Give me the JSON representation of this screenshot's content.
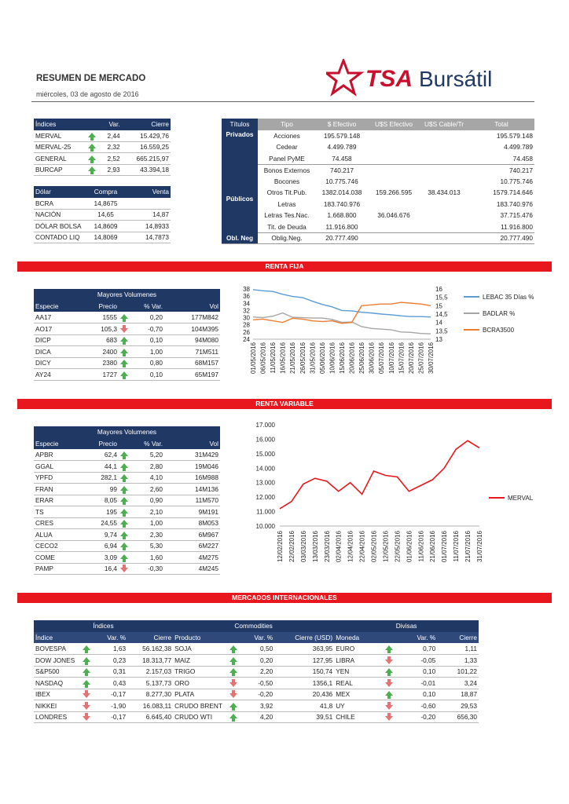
{
  "header": {
    "title": "RESUMEN DE MERCADO",
    "date": "miércoles, 03 de agosto de 2016",
    "logo_text": "TSA Bursátil",
    "logo_tsa": "TSA",
    "logo_bursatil": "Bursátil"
  },
  "indices": {
    "headers": [
      "Índices",
      "Var.",
      "Cierre"
    ],
    "rows": [
      {
        "name": "MERVAL",
        "dir": "up",
        "var": "2,44",
        "close": "15.429,76"
      },
      {
        "name": "MERVAL-25",
        "dir": "up",
        "var": "2,32",
        "close": "16.559,25"
      },
      {
        "name": "GENERAL",
        "dir": "up",
        "var": "2,52",
        "close": "665.215,97"
      },
      {
        "name": "BURCAP",
        "dir": "up",
        "var": "2,93",
        "close": "43.394,18"
      }
    ]
  },
  "dolar": {
    "headers": [
      "Dólar",
      "Compra",
      "Venta"
    ],
    "rows": [
      {
        "name": "BCRA",
        "buy": "14,8675",
        "sell": ""
      },
      {
        "name": "NACIÓN",
        "buy": "14,65",
        "sell": "14,87"
      },
      {
        "name": "DÓLAR BOLSA",
        "buy": "14,8609",
        "sell": "14,8933"
      },
      {
        "name": "CONTADO LIQ",
        "buy": "14,8069",
        "sell": "14,7873"
      }
    ]
  },
  "titulos": {
    "headers": [
      "Títulos",
      "Tipo",
      "$ Efectivo",
      "U$S Efectivo",
      "U$S Cable/Tr",
      "Total"
    ],
    "privados_label": "Privados",
    "publicos_label": "Públicos",
    "obl_label": "Obl. Neg",
    "privados": [
      {
        "tipo": "Acciones",
        "ef": "195.579.148",
        "usd": "",
        "cable": "",
        "total": "195.579.148"
      },
      {
        "tipo": "Cedear",
        "ef": "4.499.789",
        "usd": "",
        "cable": "",
        "total": "4.499.789"
      },
      {
        "tipo": "Panel PyME",
        "ef": "74.458",
        "usd": "",
        "cable": "",
        "total": "74.458"
      }
    ],
    "publicos": [
      {
        "tipo": "Bonos Externos",
        "ef": "740.217",
        "usd": "",
        "cable": "",
        "total": "740.217"
      },
      {
        "tipo": "Bocones",
        "ef": "10.775.746",
        "usd": "",
        "cable": "",
        "total": "10.775.746"
      },
      {
        "tipo": "Otros Tit.Pub.",
        "ef": "1382.014.038",
        "usd": "159.266.595",
        "cable": "38.434.013",
        "total": "1579.714.646"
      },
      {
        "tipo": "Letras",
        "ef": "183.740.976",
        "usd": "",
        "cable": "",
        "total": "183.740.976"
      },
      {
        "tipo": "Letras Tes.Nac.",
        "ef": "1.668.800",
        "usd": "36.046.676",
        "cable": "",
        "total": "37.715.476"
      },
      {
        "tipo": "Tit. de Deuda",
        "ef": "11.916.800",
        "usd": "",
        "cable": "",
        "total": "11.916.800"
      }
    ],
    "obl": [
      {
        "tipo": "Oblig.Neg.",
        "ef": "20.777.490",
        "usd": "",
        "cable": "",
        "total": "20.777.490"
      }
    ]
  },
  "sections": {
    "renta_fija": "RENTA FIJA",
    "renta_variable": "RENTA VARIABLE",
    "internacionales": "MERCADOS INTERNACIONALES"
  },
  "rf_vol": {
    "title": "Mayores Volumenes",
    "headers": [
      "Especie",
      "Precio",
      "% Var.",
      "Vol"
    ],
    "rows": [
      {
        "esp": "AA17",
        "precio": "1555",
        "dir": "up",
        "var": "0,20",
        "vol": "177M842"
      },
      {
        "esp": "AO17",
        "precio": "105,3",
        "dir": "dn",
        "var": "-0,70",
        "vol": "104M395"
      },
      {
        "esp": "DICP",
        "precio": "683",
        "dir": "up",
        "var": "0,10",
        "vol": "94M080"
      },
      {
        "esp": "DICA",
        "precio": "2400",
        "dir": "up",
        "var": "1,00",
        "vol": "71M511"
      },
      {
        "esp": "DICY",
        "precio": "2380",
        "dir": "up",
        "var": "0,80",
        "vol": "68M157"
      },
      {
        "esp": "AY24",
        "precio": "1727",
        "dir": "up",
        "var": "0,10",
        "vol": "65M197"
      }
    ]
  },
  "rv_vol": {
    "title": "Mayores Volumenes",
    "headers": [
      "Especie",
      "Precio",
      "% Var.",
      "Vol"
    ],
    "rows": [
      {
        "esp": "APBR",
        "precio": "62,4",
        "dir": "up",
        "var": "5,20",
        "vol": "31M429"
      },
      {
        "esp": "GGAL",
        "precio": "44,1",
        "dir": "up",
        "var": "2,80",
        "vol": "19M046"
      },
      {
        "esp": "YPFD",
        "precio": "282,1",
        "dir": "up",
        "var": "4,10",
        "vol": "16M988"
      },
      {
        "esp": "FRAN",
        "precio": "99",
        "dir": "up",
        "var": "2,60",
        "vol": "14M136"
      },
      {
        "esp": "ERAR",
        "precio": "8,05",
        "dir": "up",
        "var": "0,90",
        "vol": "11M570"
      },
      {
        "esp": "TS",
        "precio": "195",
        "dir": "up",
        "var": "2,10",
        "vol": "9M191"
      },
      {
        "esp": "CRES",
        "precio": "24,55",
        "dir": "up",
        "var": "1,00",
        "vol": "8M053"
      },
      {
        "esp": "ALUA",
        "precio": "9,74",
        "dir": "up",
        "var": "2,30",
        "vol": "6M967"
      },
      {
        "esp": "CECO2",
        "precio": "6,94",
        "dir": "up",
        "var": "5,30",
        "vol": "6M227"
      },
      {
        "esp": "COME",
        "precio": "3,09",
        "dir": "up",
        "var": "1,60",
        "vol": "4M275"
      },
      {
        "esp": "PAMP",
        "precio": "16,4",
        "dir": "dn",
        "var": "-0,30",
        "vol": "4M245"
      }
    ]
  },
  "intl": {
    "groups": [
      "Índices",
      "Commodities",
      "Divisas"
    ],
    "headers": [
      "Índice",
      "Var. %",
      "Cierre",
      "Producto",
      "Var. %",
      "Cierre (USD)",
      "Moneda",
      "Var. %",
      "Cierre"
    ],
    "rows": [
      {
        "i": "BOVESPA",
        "id": "up",
        "iv": "1,63",
        "ic": "56.162,38",
        "p": "SOJA",
        "pd": "up",
        "pv": "0,50",
        "pc": "363,95",
        "m": "EURO",
        "md": "up",
        "mv": "0,70",
        "mc": "1,11"
      },
      {
        "i": "DOW JONES",
        "id": "up",
        "iv": "0,23",
        "ic": "18.313,77",
        "p": "MAIZ",
        "pd": "up",
        "pv": "0,20",
        "pc": "127,95",
        "m": "LIBRA",
        "md": "dn",
        "mv": "-0,05",
        "mc": "1,33"
      },
      {
        "i": "S&P500",
        "id": "up",
        "iv": "0,31",
        "ic": "2.157,03",
        "p": "TRIGO",
        "pd": "up",
        "pv": "2,20",
        "pc": "150,74",
        "m": "YEN",
        "md": "up",
        "mv": "0,10",
        "mc": "101,22"
      },
      {
        "i": "NASDAQ",
        "id": "up",
        "iv": "0,43",
        "ic": "5.137,73",
        "p": "ORO",
        "pd": "dn",
        "pv": "-0,50",
        "pc": "1356,1",
        "m": "REAL",
        "md": "dn",
        "mv": "-0,01",
        "mc": "3,24"
      },
      {
        "i": "IBEX",
        "id": "dn",
        "iv": "-0,17",
        "ic": "8.277,30",
        "p": "PLATA",
        "pd": "dn",
        "pv": "-0,20",
        "pc": "20,436",
        "m": "MEX",
        "md": "up",
        "mv": "0,10",
        "mc": "18,87"
      },
      {
        "i": "NIKKEI",
        "id": "dn",
        "iv": "-1,90",
        "ic": "16.083,11",
        "p": "CRUDO BRENT",
        "pd": "up",
        "pv": "3,92",
        "pc": "41,8",
        "m": "UY",
        "md": "dn",
        "mv": "-0,60",
        "mc": "29,53"
      },
      {
        "i": "LONDRES",
        "id": "dn",
        "iv": "-0,17",
        "ic": "6.645,40",
        "p": "CRUDO WTI",
        "pd": "up",
        "pv": "4,20",
        "pc": "39,51",
        "m": "CHILE",
        "md": "dn",
        "mv": "-0,20",
        "mc": "656,30"
      }
    ]
  },
  "chart_data": [
    {
      "type": "line",
      "title": "",
      "xlabel": "",
      "ylabel": "",
      "categories": [
        "01/05/2016",
        "06/05/2016",
        "11/05/2016",
        "16/05/2016",
        "21/05/2016",
        "26/05/2016",
        "31/05/2016",
        "05/06/2016",
        "10/06/2016",
        "15/06/2016",
        "20/06/2016",
        "25/06/2016",
        "30/06/2016",
        "05/07/2016",
        "10/07/2016",
        "15/07/2016",
        "20/07/2016",
        "25/07/2016",
        "30/07/2016"
      ],
      "y_left_ticks": [
        "38",
        "36",
        "34",
        "32",
        "30",
        "28",
        "26",
        "24"
      ],
      "ylim_left": [
        24,
        38
      ],
      "y_right_ticks": [
        "16",
        "15,5",
        "15",
        "14,5",
        "14",
        "13,5",
        "13"
      ],
      "ylim_right": [
        13,
        16
      ],
      "series": [
        {
          "name": "LEBAC 35 Días %",
          "axis": "left",
          "color": "#5b9bd5",
          "values": [
            37.8,
            37.5,
            37.3,
            36.5,
            35.9,
            35.6,
            34.6,
            33.7,
            33.0,
            32.0,
            31.9,
            31.5,
            31.3,
            31.0,
            30.8,
            30.5,
            30.3,
            30.3,
            30.2
          ]
        },
        {
          "name": "BADLAR %",
          "axis": "left",
          "color": "#a5a5a5",
          "values": [
            30.2,
            30.0,
            30.4,
            31.3,
            30.1,
            30.0,
            29.9,
            29.9,
            29.5,
            28.7,
            28.8,
            27.5,
            27.0,
            26.8,
            26.6,
            26.0,
            25.9,
            25.6,
            25.5
          ]
        },
        {
          "name": "BCRA3500",
          "axis": "right",
          "color": "#ed7d31",
          "values": [
            14.15,
            14.2,
            14.1,
            14.0,
            14.25,
            14.2,
            14.1,
            14.05,
            14.1,
            13.95,
            14.0,
            15.0,
            15.05,
            15.1,
            15.1,
            15.2,
            15.15,
            15.1,
            15.0
          ]
        }
      ]
    },
    {
      "type": "line",
      "title": "",
      "xlabel": "",
      "ylabel": "",
      "categories": [
        "12/02/2016",
        "22/02/2016",
        "03/03/2016",
        "13/03/2016",
        "23/03/2016",
        "02/04/2016",
        "12/04/2016",
        "22/04/2016",
        "02/05/2016",
        "12/05/2016",
        "22/05/2016",
        "01/06/2016",
        "11/06/2016",
        "21/06/2016",
        "01/07/2016",
        "11/07/2016",
        "21/07/2016",
        "31/07/2016"
      ],
      "y_ticks": [
        "17.000",
        "16.000",
        "15.000",
        "14.000",
        "13.000",
        "12.000",
        "11.000",
        "10.000"
      ],
      "ylim": [
        10000,
        17000
      ],
      "series": [
        {
          "name": "MERVAL",
          "color": "#e8171e",
          "values": [
            11200,
            11700,
            12900,
            13300,
            13100,
            12400,
            13000,
            12200,
            13800,
            13500,
            13400,
            12400,
            12800,
            13200,
            14000,
            15300,
            15900,
            15400
          ]
        }
      ]
    }
  ]
}
